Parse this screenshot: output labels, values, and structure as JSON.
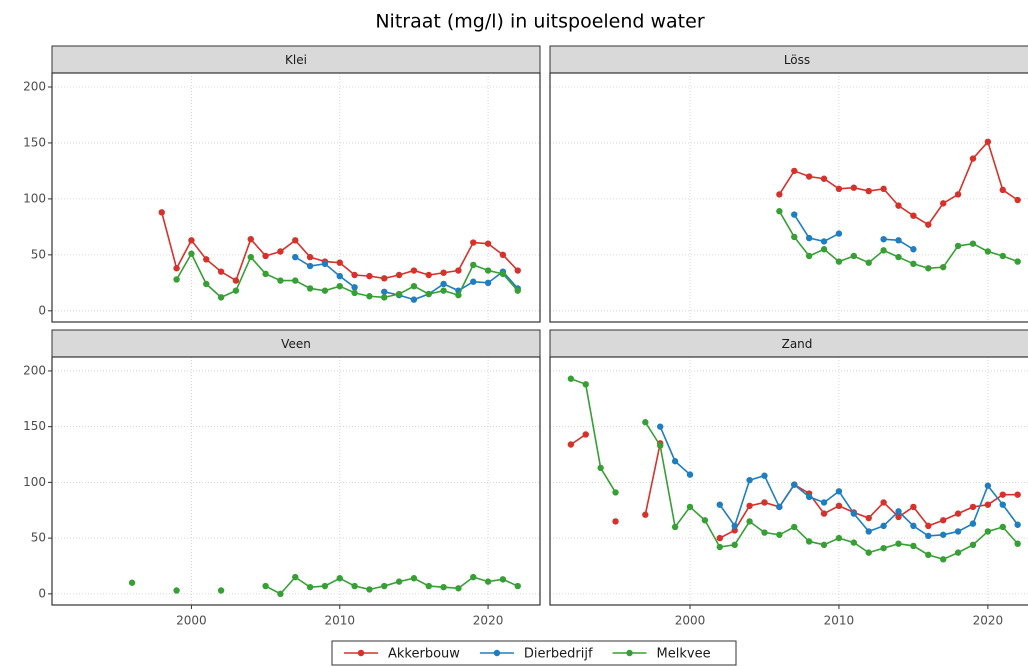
{
  "title": "Nitraat (mg/l) in uitspoelend water",
  "chart_data": [
    {
      "type": "line",
      "title": "Klei",
      "x": [
        1998,
        1999,
        2000,
        2001,
        2002,
        2003,
        2004,
        2005,
        2006,
        2007,
        2008,
        2009,
        2010,
        2011,
        2012,
        2013,
        2014,
        2015,
        2016,
        2017,
        2018,
        2019,
        2020,
        2021,
        2022
      ],
      "series": [
        {
          "name": "Akkerbouw",
          "color": "#d7312b",
          "values": [
            88,
            38,
            63,
            46,
            35,
            27,
            64,
            49,
            53,
            63,
            48,
            44,
            43,
            32,
            31,
            29,
            32,
            36,
            32,
            34,
            36,
            61,
            60,
            50,
            36
          ]
        },
        {
          "name": "Dierbedrijf",
          "color": "#1f7ec2",
          "values": [
            null,
            null,
            null,
            null,
            null,
            null,
            null,
            null,
            null,
            48,
            40,
            42,
            31,
            21,
            null,
            17,
            14,
            10,
            15,
            24,
            18,
            26,
            25,
            35,
            20
          ]
        },
        {
          "name": "Melkvee",
          "color": "#37a035",
          "values": [
            null,
            28,
            51,
            24,
            12,
            18,
            48,
            33,
            27,
            27,
            20,
            18,
            22,
            16,
            13,
            12,
            15,
            22,
            15,
            18,
            14,
            41,
            36,
            33,
            18
          ]
        }
      ],
      "xlim": [
        1990.6,
        2023.5
      ],
      "ylim": [
        -10,
        212.5
      ],
      "xticks": [
        2000,
        2010,
        2020
      ],
      "yticks": [
        0,
        50,
        100,
        150,
        200
      ],
      "grid": true
    },
    {
      "type": "line",
      "title": "Löss",
      "x": [
        2006,
        2007,
        2008,
        2009,
        2010,
        2011,
        2012,
        2013,
        2014,
        2015,
        2016,
        2017,
        2018,
        2019,
        2020,
        2021,
        2022
      ],
      "series": [
        {
          "color": "#d7312b",
          "values": [
            104,
            125,
            120,
            118,
            109,
            110,
            107,
            109,
            94,
            85,
            77,
            96,
            104,
            136,
            151,
            108,
            99
          ]
        },
        {
          "color": "#1f7ec2",
          "values": [
            null,
            86,
            65,
            62,
            69,
            null,
            null,
            64,
            63,
            55,
            null,
            null,
            null,
            null,
            null,
            null,
            null
          ]
        },
        {
          "color": "#37a035",
          "values": [
            89,
            66,
            49,
            55,
            44,
            49,
            43,
            54,
            48,
            42,
            38,
            39,
            58,
            60,
            53,
            49,
            44
          ]
        }
      ],
      "xlim": [
        1990.6,
        2023.5
      ],
      "ylim": [
        -10,
        212.5
      ],
      "xticks": [
        2000,
        2010,
        2020
      ],
      "yticks": [
        0,
        50,
        100,
        150,
        200
      ],
      "grid": true
    },
    {
      "type": "line",
      "title": "Veen",
      "x": [
        1996,
        1997,
        1998,
        1999,
        2000,
        2001,
        2002,
        2003,
        2004,
        2005,
        2006,
        2007,
        2008,
        2009,
        2010,
        2011,
        2012,
        2013,
        2014,
        2015,
        2016,
        2017,
        2018,
        2019,
        2020,
        2021,
        2022
      ],
      "series": [
        {
          "color": "#37a035",
          "values": [
            10,
            null,
            null,
            3,
            null,
            null,
            3,
            null,
            null,
            7,
            0,
            15,
            6,
            7,
            14,
            7,
            4,
            7,
            11,
            14,
            7,
            6,
            5,
            15,
            11,
            13,
            7
          ]
        }
      ],
      "xlim": [
        1990.6,
        2023.5
      ],
      "ylim": [
        -10,
        212.5
      ],
      "xticks": [
        2000,
        2010,
        2020
      ],
      "yticks": [
        0,
        50,
        100,
        150,
        200
      ],
      "grid": true
    },
    {
      "type": "line",
      "title": "Zand",
      "x": [
        1992,
        1993,
        1994,
        1995,
        1996,
        1997,
        1998,
        1999,
        2000,
        2001,
        2002,
        2003,
        2004,
        2005,
        2006,
        2007,
        2008,
        2009,
        2010,
        2011,
        2012,
        2013,
        2014,
        2015,
        2016,
        2017,
        2018,
        2019,
        2020,
        2021,
        2022
      ],
      "series": [
        {
          "color": "#d7312b",
          "values": [
            134,
            143,
            null,
            65,
            null,
            71,
            135,
            null,
            null,
            null,
            50,
            57,
            79,
            82,
            78,
            98,
            90,
            72,
            79,
            73,
            68,
            82,
            69,
            78,
            61,
            66,
            72,
            78,
            80,
            89,
            89
          ]
        },
        {
          "color": "#1f7ec2",
          "values": [
            null,
            null,
            null,
            null,
            null,
            null,
            150,
            119,
            107,
            null,
            80,
            61,
            102,
            106,
            78,
            98,
            87,
            82,
            92,
            72,
            56,
            61,
            74,
            61,
            52,
            53,
            56,
            63,
            97,
            80,
            62
          ]
        },
        {
          "color": "#37a035",
          "values": [
            193,
            188,
            113,
            91,
            null,
            154,
            133,
            60,
            78,
            66,
            42,
            44,
            65,
            55,
            53,
            60,
            47,
            44,
            50,
            46,
            37,
            41,
            45,
            43,
            35,
            31,
            37,
            44,
            56,
            60,
            45
          ]
        }
      ],
      "xlim": [
        1990.6,
        2023.5
      ],
      "ylim": [
        -10,
        212.5
      ],
      "xticks": [
        2000,
        2010,
        2020
      ],
      "yticks": [
        0,
        50,
        100,
        150,
        200
      ],
      "grid": true
    }
  ]
}
